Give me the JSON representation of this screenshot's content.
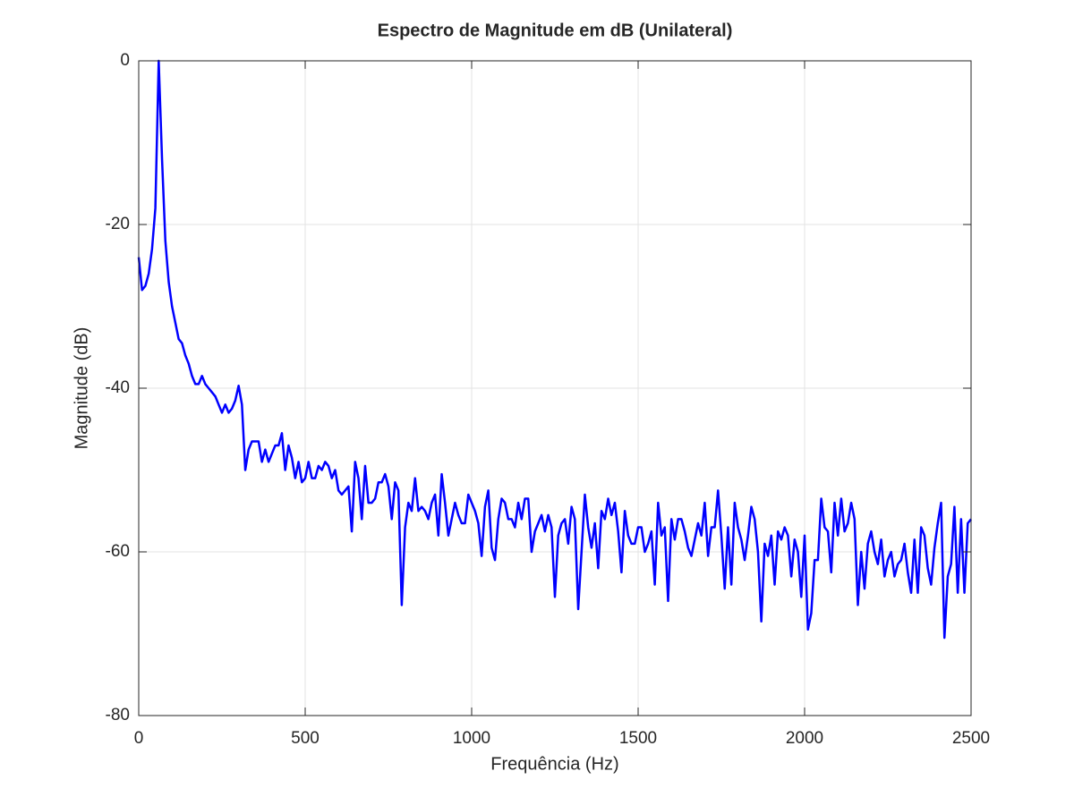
{
  "chart_data": {
    "type": "line",
    "title": "Espectro de Magnitude em dB (Unilateral)",
    "x_label": "Frequência (Hz)",
    "y_label": "Magnitude (dB)",
    "xlim": [
      0,
      2500
    ],
    "xticks": [
      0,
      500,
      1000,
      1500,
      2000,
      2500
    ],
    "ylim": [
      -80,
      0
    ],
    "yticks": [
      -80,
      -60,
      -40,
      -20,
      0
    ],
    "grid": true,
    "color": "#0000ff",
    "x": [
      0,
      10,
      20,
      30,
      40,
      50,
      60,
      70,
      80,
      90,
      100,
      110,
      120,
      130,
      140,
      150,
      160,
      170,
      180,
      190,
      200,
      210,
      220,
      230,
      240,
      250,
      260,
      270,
      280,
      290,
      300,
      310,
      320,
      330,
      340,
      350,
      360,
      370,
      380,
      390,
      400,
      410,
      420,
      430,
      440,
      450,
      460,
      470,
      480,
      490,
      500,
      510,
      520,
      530,
      540,
      550,
      560,
      570,
      580,
      590,
      600,
      610,
      620,
      630,
      640,
      650,
      660,
      670,
      680,
      690,
      700,
      710,
      720,
      730,
      740,
      750,
      760,
      770,
      780,
      790,
      800,
      810,
      820,
      830,
      840,
      850,
      860,
      870,
      880,
      890,
      900,
      910,
      920,
      930,
      940,
      950,
      960,
      970,
      980,
      990,
      1000,
      1010,
      1020,
      1030,
      1040,
      1050,
      1060,
      1070,
      1080,
      1090,
      1100,
      1110,
      1120,
      1130,
      1140,
      1150,
      1160,
      1170,
      1180,
      1190,
      1200,
      1210,
      1220,
      1230,
      1240,
      1250,
      1260,
      1270,
      1280,
      1290,
      1300,
      1310,
      1320,
      1330,
      1340,
      1350,
      1360,
      1370,
      1380,
      1390,
      1400,
      1410,
      1420,
      1430,
      1440,
      1450,
      1460,
      1470,
      1480,
      1490,
      1500,
      1510,
      1520,
      1530,
      1540,
      1550,
      1560,
      1570,
      1580,
      1590,
      1600,
      1610,
      1620,
      1630,
      1640,
      1650,
      1660,
      1670,
      1680,
      1690,
      1700,
      1710,
      1720,
      1730,
      1740,
      1750,
      1760,
      1770,
      1780,
      1790,
      1800,
      1810,
      1820,
      1830,
      1840,
      1850,
      1860,
      1870,
      1880,
      1890,
      1900,
      1910,
      1920,
      1930,
      1940,
      1950,
      1960,
      1970,
      1980,
      1990,
      2000,
      2010,
      2020,
      2030,
      2040,
      2050,
      2060,
      2070,
      2080,
      2090,
      2100,
      2110,
      2120,
      2130,
      2140,
      2150,
      2160,
      2170,
      2180,
      2190,
      2200,
      2210,
      2220,
      2230,
      2240,
      2250,
      2260,
      2270,
      2280,
      2290,
      2300,
      2310,
      2320,
      2330,
      2340,
      2350,
      2360,
      2370,
      2380,
      2390,
      2400,
      2410,
      2420,
      2430,
      2440,
      2450,
      2460,
      2470,
      2480,
      2490,
      2500
    ],
    "values": [
      -24,
      -28,
      -27.5,
      -26,
      -23,
      -18,
      0,
      -12,
      -22,
      -27,
      -30,
      -32,
      -34,
      -34.5,
      -36,
      -37,
      -38.5,
      -39.5,
      -39.5,
      -38.5,
      -39.5,
      -40,
      -40.5,
      -41,
      -42,
      -43,
      -42,
      -43,
      -42.5,
      -41.5,
      -39.7,
      -42,
      -50,
      -47.5,
      -46.5,
      -46.5,
      -46.5,
      -49,
      -47.5,
      -49,
      -48,
      -47,
      -47,
      -45.5,
      -50,
      -47,
      -48.5,
      -51,
      -49,
      -51.5,
      -51,
      -49,
      -51,
      -51,
      -49.5,
      -50,
      -49,
      -49.5,
      -51,
      -50,
      -52.5,
      -53,
      -52.5,
      -52,
      -57.5,
      -49,
      -51,
      -56,
      -49.5,
      -54,
      -54,
      -53.5,
      -51.5,
      -51.5,
      -50.5,
      -52,
      -56,
      -51.5,
      -52.5,
      -66.5,
      -57,
      -54,
      -55,
      -51,
      -55,
      -54.5,
      -55,
      -56,
      -54,
      -53,
      -58,
      -50.5,
      -54,
      -58,
      -56,
      -54,
      -55.5,
      -56.5,
      -56.5,
      -53,
      -54,
      -55,
      -56.5,
      -60.5,
      -54.5,
      -52.5,
      -59.5,
      -61,
      -56,
      -53.5,
      -54,
      -56,
      -56,
      -57,
      -54,
      -56,
      -53.5,
      -53.5,
      -60,
      -57.5,
      -56.5,
      -55.5,
      -57.5,
      -55.5,
      -57,
      -65.5,
      -58,
      -56.5,
      -56,
      -59,
      -54.5,
      -56,
      -67,
      -60,
      -53,
      -57,
      -59.5,
      -56.5,
      -62,
      -55,
      -56,
      -53.5,
      -55.5,
      -54,
      -57.5,
      -62.5,
      -55,
      -58,
      -59,
      -59,
      -57,
      -57,
      -60,
      -59,
      -57.5,
      -64,
      -54,
      -58,
      -57,
      -66,
      -56,
      -58.5,
      -56,
      -56,
      -57.5,
      -59.5,
      -60.5,
      -58.5,
      -56.5,
      -58,
      -54,
      -60.5,
      -57,
      -57,
      -52.5,
      -58,
      -64.5,
      -57,
      -64,
      -54,
      -57,
      -58.5,
      -61,
      -58,
      -54.5,
      -56,
      -60,
      -68.5,
      -59,
      -60.5,
      -58,
      -64,
      -57.5,
      -58.5,
      -57,
      -58,
      -63,
      -58.5,
      -60,
      -65.5,
      -58,
      -69.5,
      -67.5,
      -61,
      -61,
      -53.5,
      -57,
      -57.5,
      -62.5,
      -54,
      -58,
      -53.5,
      -57.5,
      -56.5,
      -54,
      -56,
      -66.5,
      -60,
      -64.5,
      -59,
      -57.5,
      -60,
      -61.5,
      -58.5,
      -63,
      -61,
      -60,
      -63,
      -61.5,
      -61,
      -59,
      -62.5,
      -65,
      -58.5,
      -65,
      -57,
      -58,
      -62,
      -64,
      -59.5,
      -56.5,
      -54,
      -70.5,
      -63,
      -61.5,
      -54.5,
      -65,
      -56,
      -65,
      -56.5,
      -56
    ]
  }
}
